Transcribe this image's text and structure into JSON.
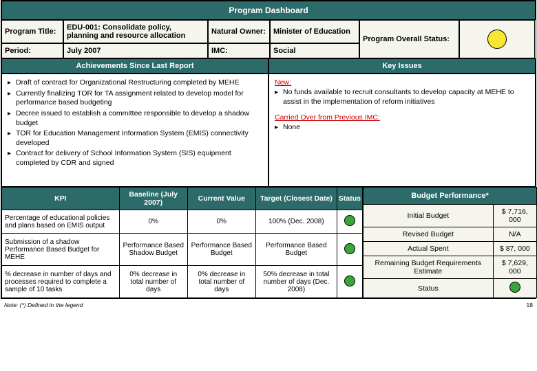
{
  "colors": {
    "teal": "#2d6b6b",
    "yellow": "#f7e733",
    "green": "#3aa63a",
    "red": "#c00000",
    "cream": "#f5f5ed"
  },
  "title": "Program Dashboard",
  "info": {
    "program_title_lbl": "Program Title:",
    "program_title_val": "EDU-001: Consolidate policy, planning and resource allocation",
    "owner_lbl": "Natural Owner:",
    "owner_val": "Minister of Education",
    "period_lbl": "Period:",
    "period_val": "July 2007",
    "imc_lbl": "IMC:",
    "imc_val": "Social",
    "status_lbl": "Program Overall Status:"
  },
  "achievements": {
    "hdr": "Achievements Since Last Report",
    "items": [
      "Draft of contract for Organizational Restructuring completed by MEHE",
      "Currently finalizing TOR for TA assignment related to develop model for performance based budgeting",
      "Decree issued to establish a committee responsible to develop a shadow budget",
      "TOR for Education Management Information System (EMIS) connectivity developed",
      "Contract for delivery of School Information System (SIS) equipment completed by CDR and signed"
    ]
  },
  "issues": {
    "hdr": "Key Issues",
    "new_lbl": "New:",
    "new_items": [
      "No funds available to recruit consultants to develop capacity at MEHE to assist in the implementation of reform initiatives"
    ],
    "carry_lbl": "Carried Over from Previous IMC:",
    "carry_items": [
      "None"
    ]
  },
  "kpi": {
    "hdrs": [
      "KPI",
      "Baseline (July 2007)",
      "Current Value",
      "Target (Closest Date)",
      "Status"
    ],
    "rows": [
      {
        "k": "Percentage of educational policies and plans based on EMIS output",
        "b": "0%",
        "c": "0%",
        "t": "100% (Dec. 2008)",
        "status_color": "#3aa63a"
      },
      {
        "k": "Submission of a shadow Performance Based Budget for MEHE",
        "b": "Performance Based Shadow Budget",
        "c": "Performance Based Budget",
        "t": "Performance Based Budget",
        "status_color": "#3aa63a"
      },
      {
        "k": "% decrease in number of days and processes required to complete a sample of 10 tasks",
        "b": "0% decrease in total number of days",
        "c": "0% decrease in total number of days",
        "t": "50% decrease in total number of days (Dec. 2008)",
        "status_color": "#3aa63a"
      }
    ]
  },
  "budget": {
    "hdr": "Budget Performance*",
    "rows": [
      {
        "l": "Initial Budget",
        "v": "$ 7,716, 000"
      },
      {
        "l": "Revised Budget",
        "v": "N/A"
      },
      {
        "l": "Actual Spent",
        "v": "$ 87, 000"
      },
      {
        "l": "Remaining Budget Requirements Estimate",
        "v": "$ 7,629, 000"
      },
      {
        "l": "Status",
        "v": ""
      }
    ]
  },
  "footer": {
    "note": "Note: (*) Defined in the legend",
    "page": "18"
  }
}
